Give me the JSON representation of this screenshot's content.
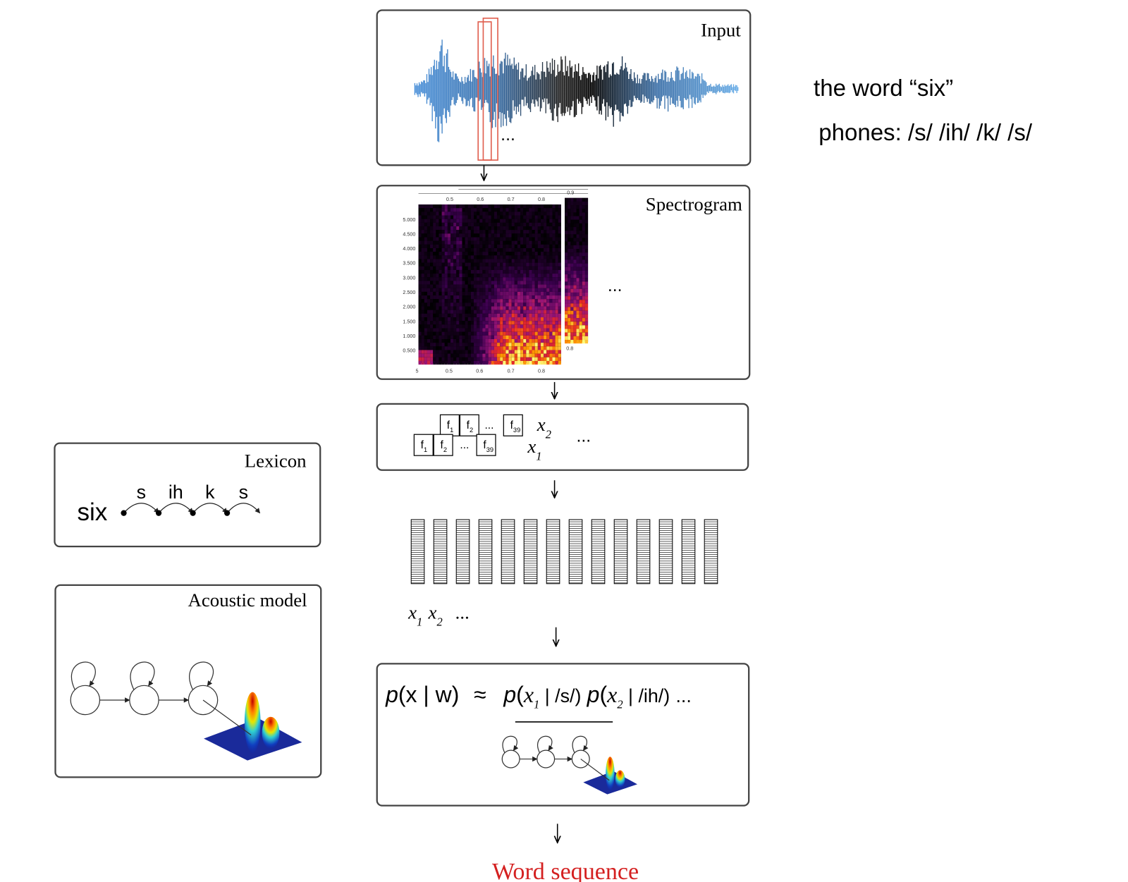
{
  "input": {
    "title": "Input",
    "ellipsis": "..."
  },
  "spectrogram": {
    "title": "Spectrogram",
    "freq_labels": [
      "5.000",
      "4.500",
      "4.000",
      "3.500",
      "3.000",
      "2.500",
      "2.000",
      "1.500",
      "1.000",
      "0.500"
    ],
    "time_labels_bottom": [
      "5",
      "0.5",
      "0.6",
      "0.7",
      "0.8"
    ],
    "time_labels_top": [
      "0.5",
      "0.6",
      "0.7",
      "0.8"
    ],
    "second_frame_labels": [
      "0.9",
      "0.8"
    ],
    "ellipsis": "..."
  },
  "features": {
    "frame_2": [
      {
        "symbol": "f",
        "index": "1"
      },
      {
        "symbol": "f",
        "index": "2"
      },
      {
        "symbol": "...",
        "index": ""
      },
      {
        "symbol": "f",
        "index": "39"
      }
    ],
    "frame_1": [
      {
        "symbol": "f",
        "index": "1"
      },
      {
        "symbol": "f",
        "index": "2"
      },
      {
        "symbol": "...",
        "index": ""
      },
      {
        "symbol": "f",
        "index": "39"
      }
    ],
    "label_2": {
      "var": "x",
      "index": "2"
    },
    "label_1": {
      "var": "x",
      "index": "1"
    },
    "ellipsis": "..."
  },
  "vectors": {
    "labels": [
      {
        "var": "x",
        "index": "1"
      },
      {
        "var": "x",
        "index": "2"
      }
    ],
    "ellipsis": "..."
  },
  "formula": {
    "parts": [
      "p",
      "(x | w)",
      "≈",
      "p",
      "(",
      "x",
      "1",
      " | /s/)",
      "p",
      "(",
      "x",
      "2",
      " | /ih/)",
      "..."
    ]
  },
  "output": "Word sequence",
  "lexicon": {
    "title": "Lexicon",
    "word": "six",
    "phones": [
      "s",
      "ih",
      "k",
      "s"
    ]
  },
  "acoustic_model": {
    "title": "Acoustic model"
  },
  "notes": {
    "word": "the word “six”",
    "phones": "phones: /s/ /ih/ /k/ /s/"
  }
}
